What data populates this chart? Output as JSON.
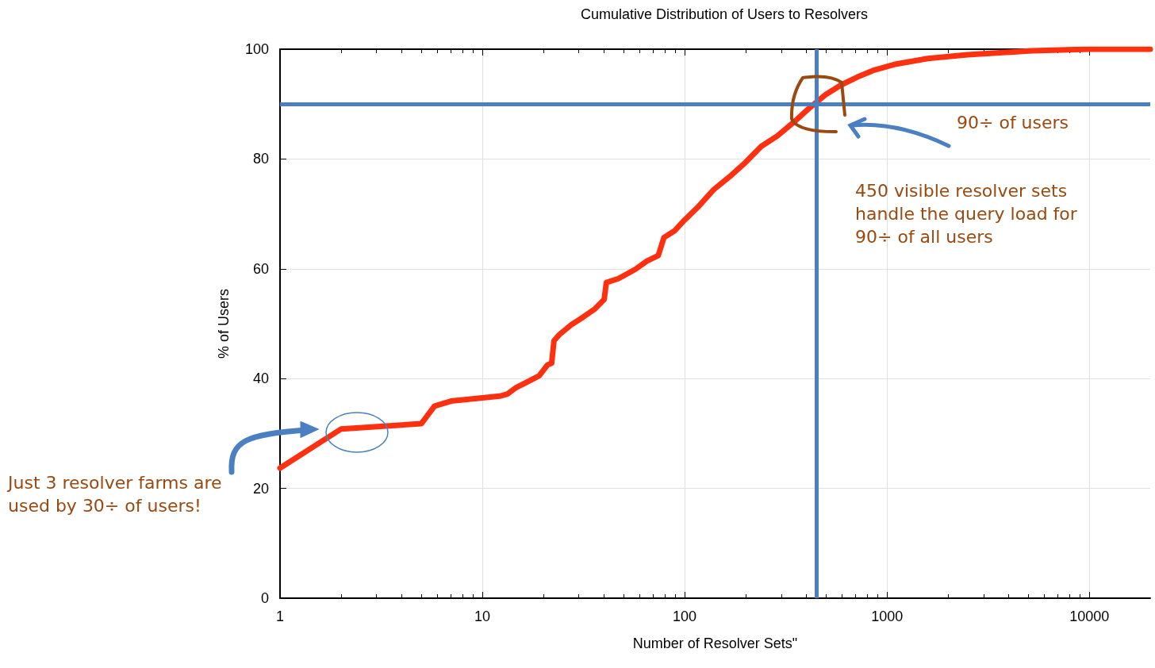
{
  "chart_data": {
    "type": "line",
    "title": "Cumulative Distribution of Users to Resolvers",
    "xlabel": "Number of Resolver Sets\"",
    "ylabel": "% of Users",
    "log": "x",
    "grid": true,
    "marker": "none",
    "line_style": "solid",
    "xlim": [
      1,
      20000
    ],
    "xticks": [
      1,
      10,
      100,
      1000,
      10000
    ],
    "ylim": [
      0,
      100
    ],
    "yticks": [
      0,
      20,
      40,
      60,
      80,
      100
    ],
    "series": [
      {
        "color": "#ff3010",
        "x": [
          1,
          2,
          5,
          5.8,
          7,
          10,
          12.2,
          13.3,
          14.6,
          16.7,
          19.1,
          21,
          22,
          22.6,
          24,
          27.5,
          31.5,
          36,
          40,
          41,
          47,
          57,
          65,
          74,
          79,
          89,
          100,
          116,
          139,
          167,
          200,
          239,
          287,
          346,
          414,
          496,
          594,
          711,
          851,
          1110,
          1590,
          2500,
          5200,
          10000,
          20000
        ],
        "values": [
          23.7,
          30.8,
          31.8,
          35,
          35.9,
          36.5,
          36.8,
          37.2,
          38.3,
          39.4,
          40.5,
          42.5,
          42.8,
          46.9,
          48,
          49.8,
          51.2,
          52.7,
          54.4,
          57.5,
          58.2,
          59.9,
          61.4,
          62.4,
          65.7,
          66.9,
          68.9,
          71.2,
          74.4,
          76.8,
          79.4,
          82.3,
          84.2,
          86.7,
          89.3,
          91.7,
          93.5,
          94.9,
          96.1,
          97.3,
          98.3,
          99,
          99.7,
          100,
          100
        ]
      }
    ],
    "ref_lines": [
      {
        "axis": "y",
        "value": 90,
        "color": "#4a80c2"
      },
      {
        "axis": "x",
        "value": 450,
        "color": "#4a80c2"
      }
    ],
    "annotations": [
      "90÷ of users",
      "450 visible resolver sets handle the query load for 90÷ of all users",
      "Just 3 resolver farms are used by 30÷ of users!"
    ]
  }
}
